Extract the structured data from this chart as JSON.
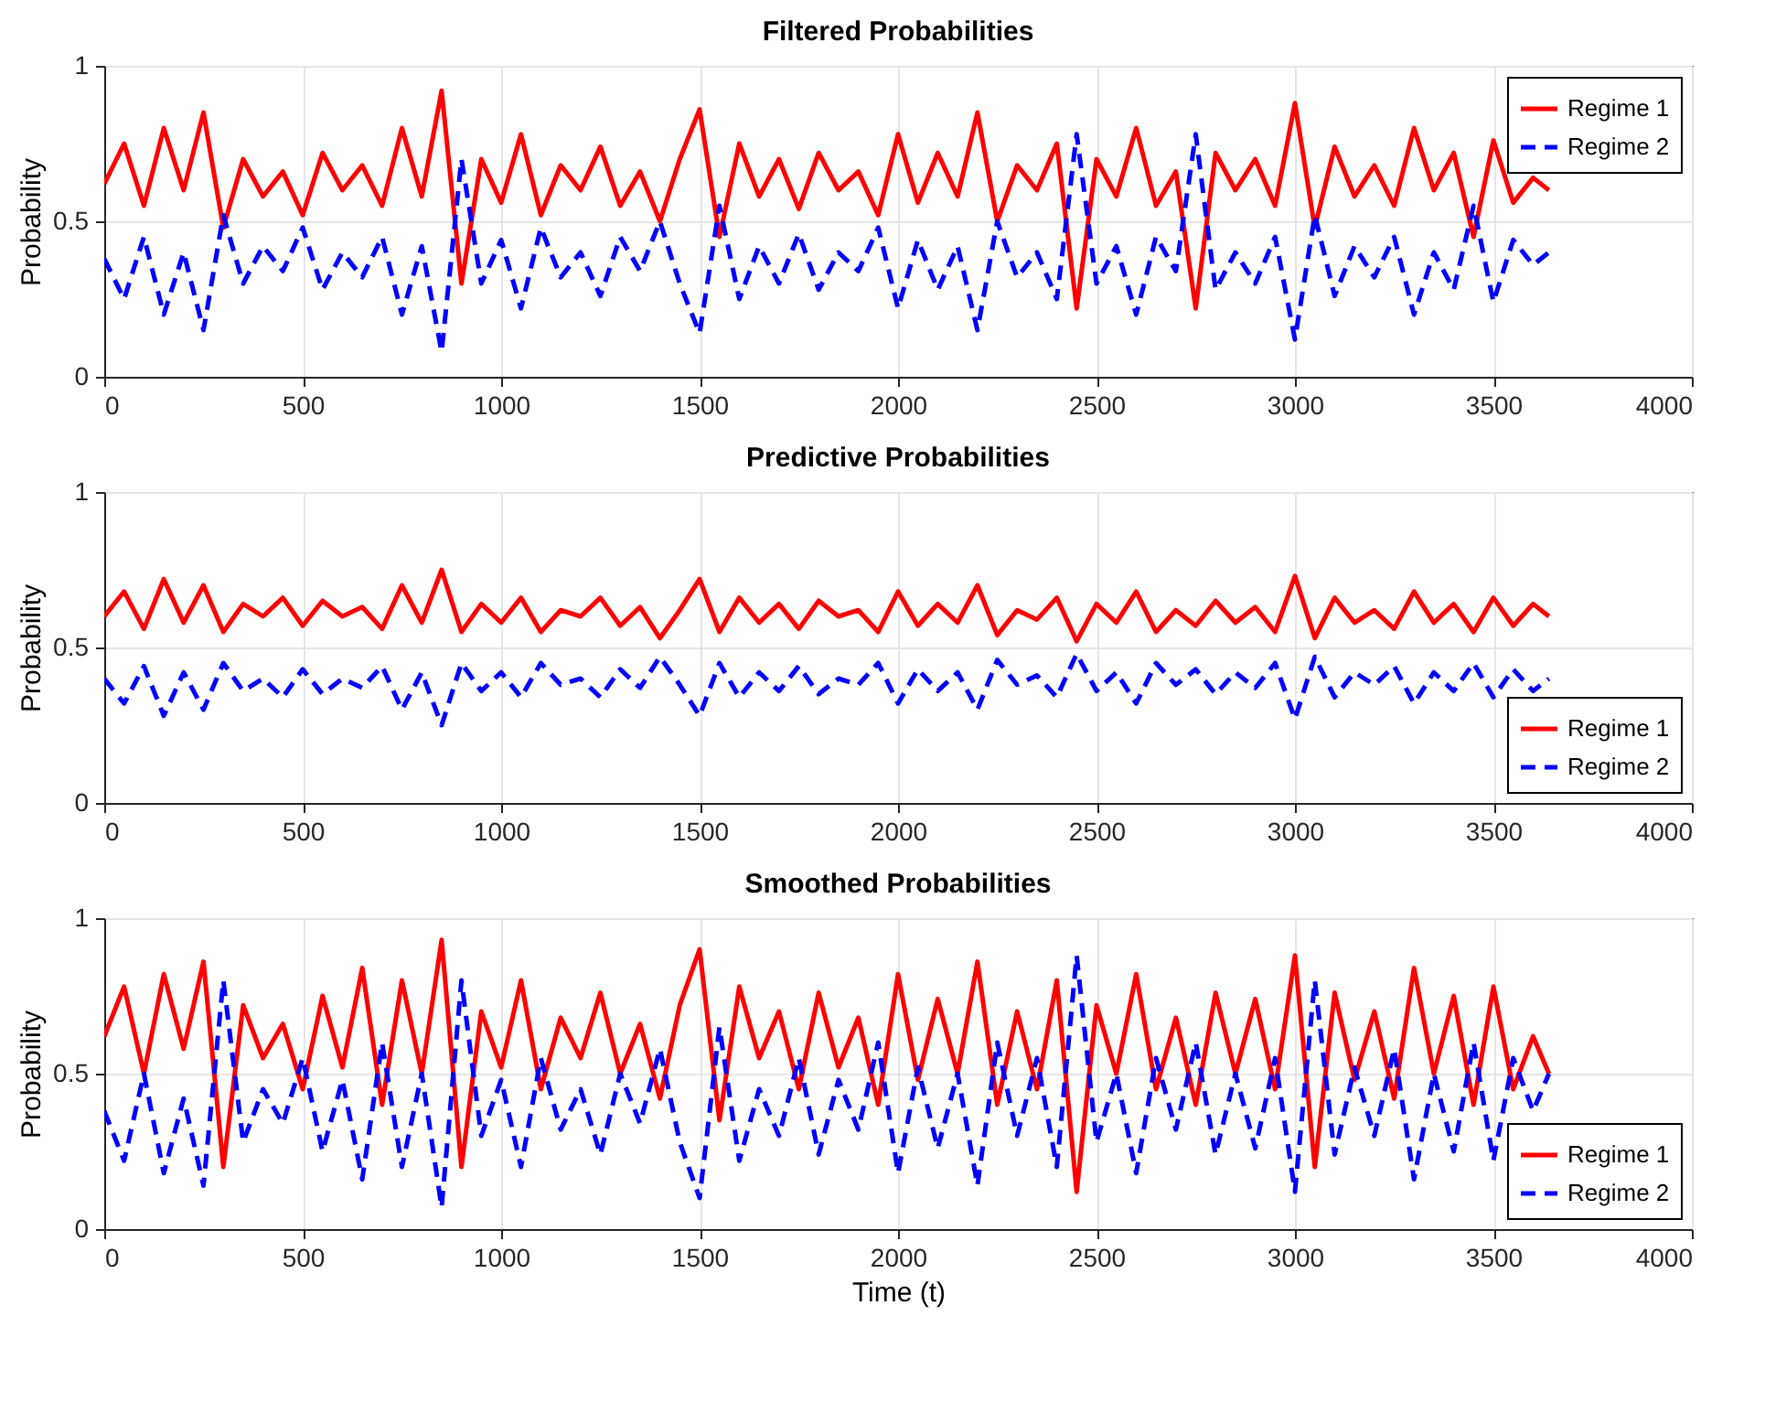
{
  "chart_data": [
    {
      "type": "line",
      "title": "Filtered Probabilities",
      "ylabel": "Probability",
      "xlim": [
        0,
        4000
      ],
      "ylim": [
        0,
        1
      ],
      "xticks": [
        0,
        500,
        1000,
        1500,
        2000,
        2500,
        3000,
        3500,
        4000
      ],
      "yticks": [
        0,
        0.5,
        1
      ],
      "grid": true,
      "legend": "top right",
      "x": [
        0,
        50,
        100,
        150,
        200,
        250,
        300,
        350,
        400,
        450,
        500,
        550,
        600,
        650,
        700,
        750,
        800,
        850,
        900,
        950,
        1000,
        1050,
        1100,
        1150,
        1200,
        1250,
        1300,
        1350,
        1400,
        1450,
        1500,
        1550,
        1600,
        1650,
        1700,
        1750,
        1800,
        1850,
        1900,
        1950,
        2000,
        2050,
        2100,
        2150,
        2200,
        2250,
        2300,
        2350,
        2400,
        2450,
        2500,
        2550,
        2600,
        2650,
        2700,
        2750,
        2800,
        2850,
        2900,
        2950,
        3000,
        3050,
        3100,
        3150,
        3200,
        3250,
        3300,
        3350,
        3400,
        3450,
        3500,
        3550,
        3600,
        3640
      ],
      "series": [
        {
          "name": "Regime 1",
          "color": "#ff0000",
          "line_style": "solid",
          "values": [
            0.62,
            0.75,
            0.55,
            0.8,
            0.6,
            0.85,
            0.48,
            0.7,
            0.58,
            0.66,
            0.52,
            0.72,
            0.6,
            0.68,
            0.55,
            0.8,
            0.58,
            0.92,
            0.3,
            0.7,
            0.56,
            0.78,
            0.52,
            0.68,
            0.6,
            0.74,
            0.55,
            0.66,
            0.5,
            0.7,
            0.86,
            0.45,
            0.75,
            0.58,
            0.7,
            0.54,
            0.72,
            0.6,
            0.66,
            0.52,
            0.78,
            0.56,
            0.72,
            0.58,
            0.85,
            0.5,
            0.68,
            0.6,
            0.75,
            0.22,
            0.7,
            0.58,
            0.8,
            0.55,
            0.66,
            0.22,
            0.72,
            0.6,
            0.7,
            0.55,
            0.88,
            0.48,
            0.74,
            0.58,
            0.68,
            0.55,
            0.8,
            0.6,
            0.72,
            0.45,
            0.76,
            0.56,
            0.64,
            0.6
          ]
        },
        {
          "name": "Regime 2",
          "color": "#0000ff",
          "line_style": "dashed",
          "values": [
            0.38,
            0.25,
            0.45,
            0.2,
            0.4,
            0.15,
            0.52,
            0.3,
            0.42,
            0.34,
            0.48,
            0.28,
            0.4,
            0.32,
            0.45,
            0.2,
            0.42,
            0.08,
            0.7,
            0.3,
            0.44,
            0.22,
            0.48,
            0.32,
            0.4,
            0.26,
            0.45,
            0.34,
            0.5,
            0.3,
            0.14,
            0.55,
            0.25,
            0.42,
            0.3,
            0.46,
            0.28,
            0.4,
            0.34,
            0.48,
            0.22,
            0.44,
            0.28,
            0.42,
            0.15,
            0.5,
            0.32,
            0.4,
            0.25,
            0.78,
            0.3,
            0.42,
            0.2,
            0.45,
            0.34,
            0.78,
            0.28,
            0.4,
            0.3,
            0.45,
            0.12,
            0.52,
            0.26,
            0.42,
            0.32,
            0.45,
            0.2,
            0.4,
            0.28,
            0.55,
            0.24,
            0.44,
            0.36,
            0.4
          ]
        }
      ]
    },
    {
      "type": "line",
      "title": "Predictive Probabilities",
      "ylabel": "Probability",
      "xlim": [
        0,
        4000
      ],
      "ylim": [
        0,
        1
      ],
      "xticks": [
        0,
        500,
        1000,
        1500,
        2000,
        2500,
        3000,
        3500,
        4000
      ],
      "yticks": [
        0,
        0.5,
        1
      ],
      "grid": true,
      "legend": "bottom right",
      "x": [
        0,
        50,
        100,
        150,
        200,
        250,
        300,
        350,
        400,
        450,
        500,
        550,
        600,
        650,
        700,
        750,
        800,
        850,
        900,
        950,
        1000,
        1050,
        1100,
        1150,
        1200,
        1250,
        1300,
        1350,
        1400,
        1450,
        1500,
        1550,
        1600,
        1650,
        1700,
        1750,
        1800,
        1850,
        1900,
        1950,
        2000,
        2050,
        2100,
        2150,
        2200,
        2250,
        2300,
        2350,
        2400,
        2450,
        2500,
        2550,
        2600,
        2650,
        2700,
        2750,
        2800,
        2850,
        2900,
        2950,
        3000,
        3050,
        3100,
        3150,
        3200,
        3250,
        3300,
        3350,
        3400,
        3450,
        3500,
        3550,
        3600,
        3640
      ],
      "series": [
        {
          "name": "Regime 1",
          "color": "#ff0000",
          "line_style": "solid",
          "values": [
            0.6,
            0.68,
            0.56,
            0.72,
            0.58,
            0.7,
            0.55,
            0.64,
            0.6,
            0.66,
            0.57,
            0.65,
            0.6,
            0.63,
            0.56,
            0.7,
            0.58,
            0.75,
            0.55,
            0.64,
            0.58,
            0.66,
            0.55,
            0.62,
            0.6,
            0.66,
            0.57,
            0.63,
            0.53,
            0.62,
            0.72,
            0.55,
            0.66,
            0.58,
            0.64,
            0.56,
            0.65,
            0.6,
            0.62,
            0.55,
            0.68,
            0.57,
            0.64,
            0.58,
            0.7,
            0.54,
            0.62,
            0.59,
            0.66,
            0.52,
            0.64,
            0.58,
            0.68,
            0.55,
            0.62,
            0.57,
            0.65,
            0.58,
            0.63,
            0.55,
            0.73,
            0.53,
            0.66,
            0.58,
            0.62,
            0.56,
            0.68,
            0.58,
            0.64,
            0.55,
            0.66,
            0.57,
            0.64,
            0.6
          ]
        },
        {
          "name": "Regime 2",
          "color": "#0000ff",
          "line_style": "dashed",
          "values": [
            0.4,
            0.32,
            0.44,
            0.28,
            0.42,
            0.3,
            0.45,
            0.36,
            0.4,
            0.34,
            0.43,
            0.35,
            0.4,
            0.37,
            0.44,
            0.3,
            0.42,
            0.25,
            0.45,
            0.36,
            0.42,
            0.34,
            0.45,
            0.38,
            0.4,
            0.34,
            0.43,
            0.37,
            0.47,
            0.38,
            0.28,
            0.45,
            0.34,
            0.42,
            0.36,
            0.44,
            0.35,
            0.4,
            0.38,
            0.45,
            0.32,
            0.43,
            0.36,
            0.42,
            0.3,
            0.46,
            0.38,
            0.41,
            0.34,
            0.48,
            0.36,
            0.42,
            0.32,
            0.45,
            0.38,
            0.43,
            0.35,
            0.42,
            0.37,
            0.45,
            0.27,
            0.47,
            0.34,
            0.42,
            0.38,
            0.44,
            0.32,
            0.42,
            0.36,
            0.45,
            0.34,
            0.43,
            0.36,
            0.4
          ]
        }
      ]
    },
    {
      "type": "line",
      "title": "Smoothed Probabilities",
      "xlabel": "Time (t)",
      "ylabel": "Probability",
      "xlim": [
        0,
        4000
      ],
      "ylim": [
        0,
        1
      ],
      "xticks": [
        0,
        500,
        1000,
        1500,
        2000,
        2500,
        3000,
        3500,
        4000
      ],
      "yticks": [
        0,
        0.5,
        1
      ],
      "grid": true,
      "legend": "bottom right",
      "x": [
        0,
        50,
        100,
        150,
        200,
        250,
        300,
        350,
        400,
        450,
        500,
        550,
        600,
        650,
        700,
        750,
        800,
        850,
        900,
        950,
        1000,
        1050,
        1100,
        1150,
        1200,
        1250,
        1300,
        1350,
        1400,
        1450,
        1500,
        1550,
        1600,
        1650,
        1700,
        1750,
        1800,
        1850,
        1900,
        1950,
        2000,
        2050,
        2100,
        2150,
        2200,
        2250,
        2300,
        2350,
        2400,
        2450,
        2500,
        2550,
        2600,
        2650,
        2700,
        2750,
        2800,
        2850,
        2900,
        2950,
        3000,
        3050,
        3100,
        3150,
        3200,
        3250,
        3300,
        3350,
        3400,
        3450,
        3500,
        3550,
        3600,
        3640
      ],
      "series": [
        {
          "name": "Regime 1",
          "color": "#ff0000",
          "line_style": "solid",
          "values": [
            0.62,
            0.78,
            0.5,
            0.82,
            0.58,
            0.86,
            0.2,
            0.72,
            0.55,
            0.66,
            0.45,
            0.75,
            0.52,
            0.84,
            0.4,
            0.8,
            0.5,
            0.93,
            0.2,
            0.7,
            0.52,
            0.8,
            0.45,
            0.68,
            0.55,
            0.76,
            0.5,
            0.66,
            0.42,
            0.72,
            0.9,
            0.35,
            0.78,
            0.55,
            0.7,
            0.45,
            0.76,
            0.52,
            0.68,
            0.4,
            0.82,
            0.48,
            0.74,
            0.5,
            0.86,
            0.4,
            0.7,
            0.45,
            0.8,
            0.12,
            0.72,
            0.5,
            0.82,
            0.45,
            0.68,
            0.4,
            0.76,
            0.5,
            0.74,
            0.45,
            0.88,
            0.2,
            0.76,
            0.48,
            0.7,
            0.42,
            0.84,
            0.5,
            0.75,
            0.4,
            0.78,
            0.45,
            0.62,
            0.5
          ]
        },
        {
          "name": "Regime 2",
          "color": "#0000ff",
          "line_style": "dashed",
          "values": [
            0.38,
            0.22,
            0.5,
            0.18,
            0.42,
            0.14,
            0.8,
            0.28,
            0.45,
            0.34,
            0.55,
            0.25,
            0.48,
            0.16,
            0.6,
            0.2,
            0.5,
            0.07,
            0.8,
            0.3,
            0.48,
            0.2,
            0.55,
            0.32,
            0.45,
            0.24,
            0.5,
            0.34,
            0.58,
            0.28,
            0.1,
            0.65,
            0.22,
            0.45,
            0.3,
            0.55,
            0.24,
            0.48,
            0.32,
            0.6,
            0.18,
            0.52,
            0.26,
            0.5,
            0.14,
            0.6,
            0.3,
            0.55,
            0.2,
            0.88,
            0.28,
            0.5,
            0.18,
            0.55,
            0.32,
            0.6,
            0.24,
            0.5,
            0.26,
            0.55,
            0.12,
            0.8,
            0.24,
            0.52,
            0.3,
            0.58,
            0.16,
            0.5,
            0.25,
            0.6,
            0.22,
            0.55,
            0.38,
            0.5
          ]
        }
      ]
    }
  ]
}
